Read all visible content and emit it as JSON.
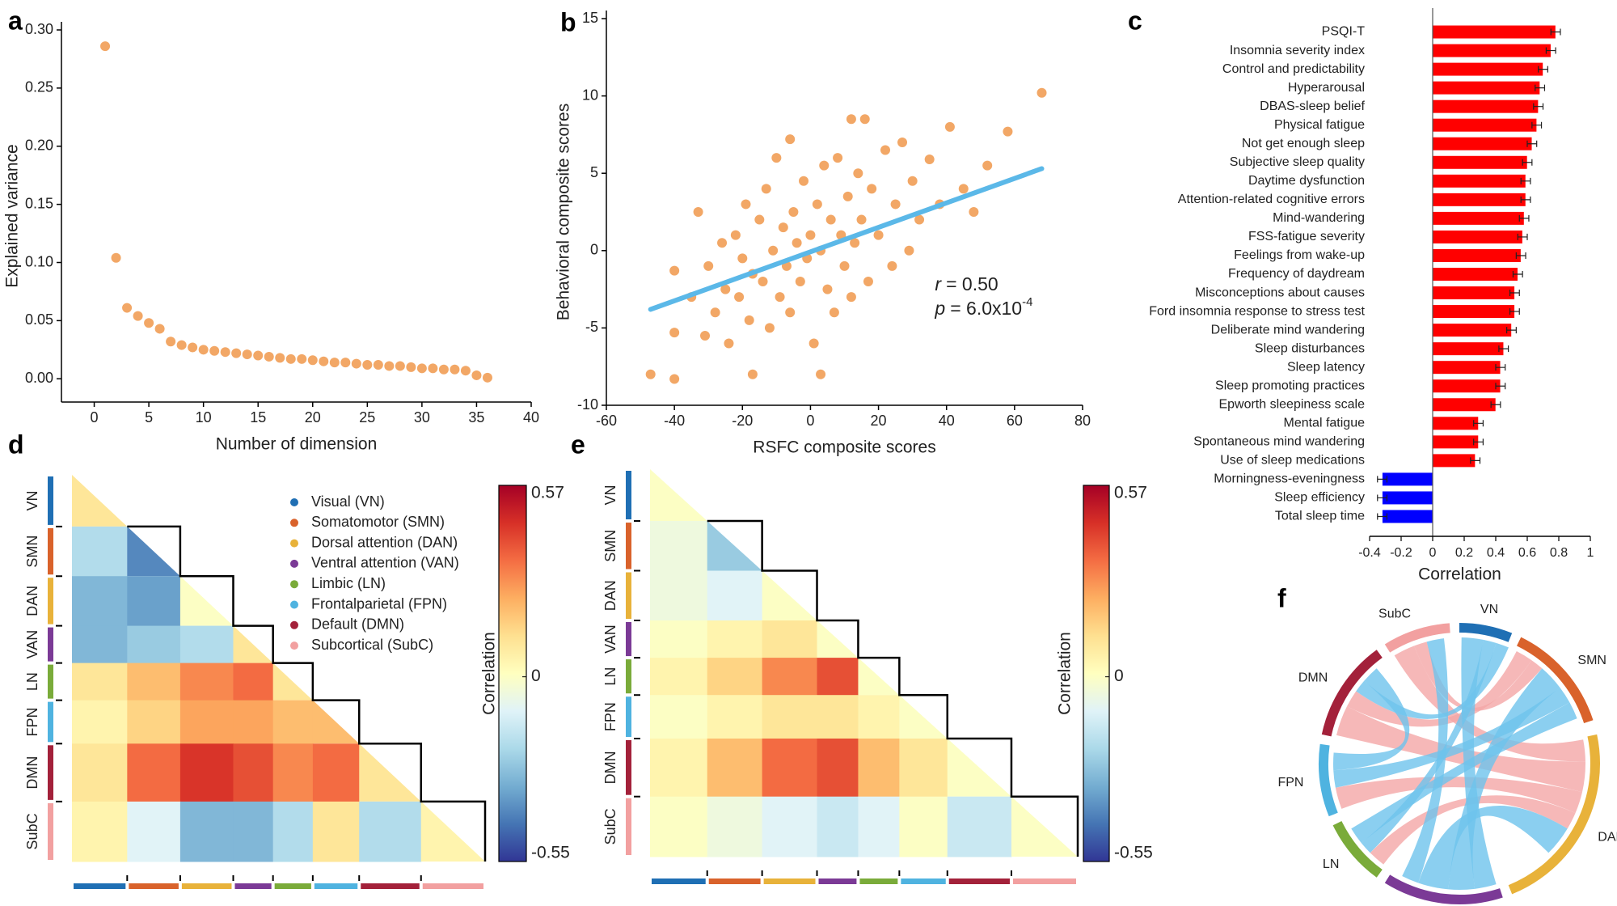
{
  "chart_data": [
    {
      "type": "scatter",
      "panel": "a",
      "xlabel": "Number of dimension",
      "ylabel": "Explained variance",
      "color": "#f2a766",
      "x": [
        1,
        2,
        3,
        4,
        5,
        6,
        7,
        8,
        9,
        10,
        11,
        12,
        13,
        14,
        15,
        16,
        17,
        18,
        19,
        20,
        21,
        22,
        23,
        24,
        25,
        26,
        27,
        28,
        29,
        30,
        31,
        32,
        33,
        34,
        35,
        36
      ],
      "values": [
        0.286,
        0.104,
        0.061,
        0.054,
        0.048,
        0.043,
        0.032,
        0.029,
        0.027,
        0.025,
        0.024,
        0.023,
        0.022,
        0.021,
        0.02,
        0.019,
        0.018,
        0.017,
        0.017,
        0.016,
        0.015,
        0.014,
        0.014,
        0.013,
        0.012,
        0.012,
        0.011,
        0.011,
        0.01,
        0.009,
        0.009,
        0.008,
        0.008,
        0.007,
        0.003,
        0.001
      ],
      "xlim": [
        -3,
        40
      ],
      "xticks": [
        0,
        5,
        10,
        15,
        20,
        25,
        30,
        35,
        40
      ],
      "ylim": [
        -0.02,
        0.3
      ],
      "yticks": [
        {
          "value": 0,
          "label": "0.00"
        },
        0.05,
        {
          "value": 0.1,
          "label": "0.10"
        },
        0.15,
        {
          "value": 0.2,
          "label": "0.20"
        },
        0.25,
        {
          "value": 0.3,
          "label": "0.30"
        }
      ]
    },
    {
      "type": "scatter",
      "panel": "b",
      "xlabel": "RSFC composite scores",
      "ylabel": "Behavioral composite scores",
      "color": "#f2a766",
      "x": [
        -47,
        -40,
        -40,
        -40,
        -35,
        -33,
        -31,
        -30,
        -28,
        -26,
        -25,
        -24,
        -22,
        -21,
        -20,
        -19,
        -18,
        -17,
        -17,
        -15,
        -14,
        -13,
        -12,
        -11,
        -10,
        -9,
        -8,
        -7,
        -6,
        -6,
        -5,
        -4,
        -3,
        -2,
        -1,
        0,
        1,
        2,
        3,
        3,
        4,
        5,
        6,
        7,
        8,
        9,
        10,
        11,
        12,
        12,
        13,
        14,
        15,
        16,
        17,
        18,
        20,
        22,
        24,
        25,
        27,
        29,
        30,
        32,
        35,
        38,
        41,
        45,
        48,
        52,
        58,
        68
      ],
      "values": [
        -8,
        -8.3,
        -1.3,
        -5.3,
        -3,
        2.5,
        -5.5,
        -1,
        -4,
        0.5,
        -2.5,
        -6,
        1,
        -3,
        -0.5,
        3,
        -4.5,
        -8,
        -1.5,
        2,
        -2,
        4,
        -5,
        0,
        6,
        -3,
        1.5,
        -1,
        7.2,
        -4,
        2.5,
        0.5,
        -2,
        4.5,
        -0.5,
        1,
        -6,
        3,
        -8,
        0,
        5.5,
        -2.5,
        2,
        -4,
        6,
        1,
        -1,
        3.5,
        8.5,
        -3,
        0.5,
        5,
        2,
        8.5,
        -2,
        4,
        1,
        6.5,
        -1,
        3,
        7,
        0,
        4.5,
        2,
        5.9,
        3,
        8,
        4,
        2.5,
        5.5,
        7.7,
        10.2
      ],
      "fit": {
        "x": [
          -47,
          68
        ],
        "y": [
          -3.8,
          5.3
        ],
        "color": "#5bb8e8"
      },
      "annotation": {
        "r_symbol": "r",
        "r_text": "= 0.50",
        "p_symbol": "p",
        "p_text": "= 6.0x10",
        "p_exponent": "-4"
      },
      "xlim": [
        -60,
        80
      ],
      "xticks": [
        -60,
        -40,
        -20,
        0,
        20,
        40,
        60,
        80
      ],
      "ylim": [
        -10,
        15
      ],
      "yticks": [
        -10,
        -5,
        0,
        5,
        10,
        15
      ]
    },
    {
      "type": "bar",
      "orientation": "horizontal",
      "panel": "c",
      "xlabel": "Correlation",
      "positive_color": "#ff0000",
      "negative_color": "#0000ff",
      "categories": [
        "PSQI-T",
        "Insomnia severity index",
        "Control and predictability",
        "Hyperarousal",
        "DBAS-sleep belief",
        "Physical fatigue",
        "Not get enough sleep",
        "Subjective sleep quality",
        "Daytime dysfunction",
        "Attention-related cognitive errors",
        "Mind-wandering",
        "FSS-fatigue severity",
        "Feelings from wake-up",
        "Frequency of daydream",
        "Misconceptions about causes",
        "Ford insomnia response to stress test",
        "Deliberate mind wandering",
        "Sleep disturbances",
        "Sleep latency",
        "Sleep promoting practices",
        "Epworth sleepiness scale",
        "Mental fatigue",
        "Spontaneous mind wandering",
        "Use of sleep medications",
        "Morningness-eveningness",
        "Sleep efficiency",
        "Total sleep time"
      ],
      "values": [
        0.78,
        0.75,
        0.7,
        0.68,
        0.67,
        0.66,
        0.63,
        0.6,
        0.59,
        0.59,
        0.58,
        0.57,
        0.56,
        0.54,
        0.52,
        0.52,
        0.5,
        0.45,
        0.43,
        0.43,
        0.4,
        0.29,
        0.29,
        0.27,
        -0.32,
        -0.32,
        -0.32
      ],
      "errors": [
        0.03,
        0.03,
        0.03,
        0.03,
        0.03,
        0.03,
        0.03,
        0.03,
        0.03,
        0.03,
        0.03,
        0.03,
        0.03,
        0.03,
        0.03,
        0.03,
        0.03,
        0.03,
        0.03,
        0.03,
        0.03,
        0.03,
        0.03,
        0.03,
        0.03,
        0.03,
        0.03
      ],
      "xlim": [
        -0.4,
        1
      ],
      "xticks": [
        -0.4,
        -0.2,
        0,
        0.2,
        0.4,
        0.6,
        0.8,
        1
      ]
    },
    {
      "type": "heatmap",
      "panel": "d",
      "clabel": "Correlation",
      "colormap": "RdYlBu_r",
      "clim": [
        -0.55,
        0.57
      ],
      "cticks": [
        0.57,
        0,
        -0.55
      ],
      "networks": [
        {
          "name": "VN",
          "label": "Visual (VN)",
          "color": "#1f6fb4"
        },
        {
          "name": "SMN",
          "label": "Somatomotor (SMN)",
          "color": "#d9622b"
        },
        {
          "name": "DAN",
          "label": "Dorsal attention (DAN)",
          "color": "#e8b23a"
        },
        {
          "name": "VAN",
          "label": "Ventral attention (VAN)",
          "color": "#7b3a96"
        },
        {
          "name": "LN",
          "label": "Limbic (LN)",
          "color": "#7aab3a"
        },
        {
          "name": "FPN",
          "label": "Frontalparietal (FPN)",
          "color": "#4fb3e0"
        },
        {
          "name": "DMN",
          "label": "Default (DMN)",
          "color": "#a3213a"
        },
        {
          "name": "SubC",
          "label": "Subcortical (SubC)",
          "color": "#f2a0a0"
        }
      ],
      "values": [
        [
          0.1
        ],
        [
          -0.2,
          -0.4
        ],
        [
          -0.3,
          -0.35,
          0
        ],
        [
          -0.3,
          -0.25,
          -0.2,
          0.1
        ],
        [
          0.1,
          0.2,
          0.3,
          0.35,
          0.1
        ],
        [
          0.05,
          0.15,
          0.25,
          0.25,
          0.2,
          0.2
        ],
        [
          0.1,
          0.35,
          0.45,
          0.4,
          0.3,
          0.35,
          0.1
        ],
        [
          0.05,
          -0.1,
          -0.3,
          -0.3,
          -0.2,
          0.1,
          -0.2,
          0.05
        ]
      ]
    },
    {
      "type": "heatmap",
      "panel": "e",
      "clabel": "Correlation",
      "colormap": "RdYlBu_r",
      "clim": [
        -0.55,
        0.57
      ],
      "cticks": [
        0.57,
        0,
        -0.55
      ],
      "networks": [
        {
          "name": "VN",
          "color": "#1f6fb4"
        },
        {
          "name": "SMN",
          "color": "#d9622b"
        },
        {
          "name": "DAN",
          "color": "#e8b23a"
        },
        {
          "name": "VAN",
          "color": "#7b3a96"
        },
        {
          "name": "LN",
          "color": "#7aab3a"
        },
        {
          "name": "FPN",
          "color": "#4fb3e0"
        },
        {
          "name": "DMN",
          "color": "#a3213a"
        },
        {
          "name": "SubC",
          "color": "#f2a0a0"
        }
      ],
      "values": [
        [
          0
        ],
        [
          -0.05,
          -0.25
        ],
        [
          -0.05,
          -0.1,
          0
        ],
        [
          0,
          0.05,
          0.1,
          0
        ],
        [
          0.05,
          0.15,
          0.3,
          0.4,
          0
        ],
        [
          0,
          0.05,
          0.1,
          0.1,
          0.05,
          0
        ],
        [
          0.05,
          0.2,
          0.35,
          0.4,
          0.2,
          0.1,
          0
        ],
        [
          0,
          -0.05,
          -0.1,
          -0.15,
          -0.1,
          0,
          -0.15,
          0
        ]
      ]
    },
    {
      "type": "chord",
      "panel": "f",
      "arcs": [
        {
          "name": "VN",
          "color": "#1f6fb4"
        },
        {
          "name": "SMN",
          "color": "#d9622b"
        },
        {
          "name": "DAN",
          "color": "#e8b23a"
        },
        {
          "name": "VAN",
          "color": "#7b3a96"
        },
        {
          "name": "LN",
          "color": "#7aab3a"
        },
        {
          "name": "FPN",
          "color": "#4fb3e0"
        },
        {
          "name": "DMN",
          "color": "#a3213a"
        },
        {
          "name": "SubC",
          "color": "#f2a0a0"
        }
      ],
      "links": [
        {
          "source": "SubC",
          "target": "DAN",
          "color": "#f4a6a6",
          "weight": 10
        },
        {
          "source": "DMN",
          "target": "DAN",
          "color": "#f4a6a6",
          "weight": 14
        },
        {
          "source": "FPN",
          "target": "DAN",
          "color": "#f4a6a6",
          "weight": 10
        },
        {
          "source": "DMN",
          "target": "SMN",
          "color": "#f4a6a6",
          "weight": 8
        },
        {
          "source": "LN",
          "target": "DAN",
          "color": "#f4a6a6",
          "weight": 8
        },
        {
          "source": "SubC",
          "target": "SMN",
          "color": "#f4a6a6",
          "weight": 6
        },
        {
          "source": "VN",
          "target": "VAN",
          "color": "#6ec3ec",
          "weight": 10
        },
        {
          "source": "VN",
          "target": "LN",
          "color": "#6ec3ec",
          "weight": 6
        },
        {
          "source": "VN",
          "target": "DMN",
          "color": "#6ec3ec",
          "weight": 6
        },
        {
          "source": "SMN",
          "target": "VAN",
          "color": "#6ec3ec",
          "weight": 12
        },
        {
          "source": "SMN",
          "target": "FPN",
          "color": "#6ec3ec",
          "weight": 8
        },
        {
          "source": "SMN",
          "target": "LN",
          "color": "#6ec3ec",
          "weight": 8
        },
        {
          "source": "DAN",
          "target": "VAN",
          "color": "#6ec3ec",
          "weight": 14
        },
        {
          "source": "FPN",
          "target": "DMN",
          "color": "#6ec3ec",
          "weight": 8
        },
        {
          "source": "SubC",
          "target": "VAN",
          "color": "#6ec3ec",
          "weight": 8
        }
      ]
    }
  ]
}
